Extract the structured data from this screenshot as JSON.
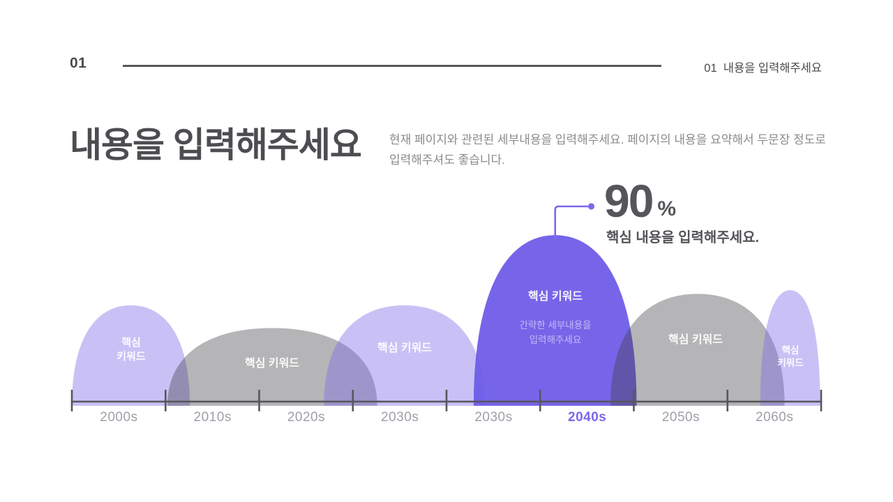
{
  "slide": {
    "page_number": "01",
    "header_right": "01  내용을 입력해주세요",
    "title": "내용을 입력해주세요",
    "description": "현재 페이지와 관련된 세부내용을 입력해주세요. 페이지의 내용을 요약해서 두문장 정도로 입력해주셔도 좋습니다."
  },
  "callout": {
    "value": "90",
    "unit": "%",
    "caption": "핵심 내용을 입력해주세요."
  },
  "colors": {
    "accent": "#7c68ea",
    "axis": "#57575c",
    "dome_lavender": "#7e6ce6",
    "dome_lavender_opacity": 0.42,
    "dome_gray": "#3c3c42",
    "dome_gray_opacity": 0.38,
    "dome_purple": "#6c59e7",
    "dome_purple_opacity": 0.93,
    "text_dark": "#4d4d51",
    "text_muted": "#8b8b90",
    "axis_label": "#9da0a8"
  },
  "chart_data": {
    "type": "area",
    "subtype": "overlapping-dome-timeline",
    "title": "내용을 입력해주세요",
    "x_tick_labels": [
      "2000s",
      "2010s",
      "2020s",
      "2030s",
      "2030s",
      "2040s",
      "2050s",
      "2060s"
    ],
    "highlighted_label": "2040s",
    "ylim": [
      0,
      100
    ],
    "grid": false,
    "highlight_value_pct": 90,
    "domes": [
      {
        "label": "핵심\n키워드",
        "height_pct": 53,
        "center": 0.63,
        "half_width": 0.63,
        "color": "lavender"
      },
      {
        "label": "핵심 키워드",
        "height_pct": 41,
        "center": 2.14,
        "half_width": 1.12,
        "color": "gray"
      },
      {
        "label": "핵심 키워드",
        "height_pct": 53,
        "center": 3.55,
        "half_width": 0.86,
        "color": "lavender"
      },
      {
        "label": "핵심 키워드",
        "sublabel": "간략한 세부내용을\n입력해주세요",
        "height_pct": 90,
        "center": 5.16,
        "half_width": 0.87,
        "color": "purple"
      },
      {
        "label": "핵심 키워드",
        "height_pct": 59,
        "center": 6.68,
        "half_width": 0.93,
        "color": "gray"
      },
      {
        "label": "핵심\n키워드",
        "height_pct": 61,
        "center": 7.67,
        "half_width": 0.32,
        "color": "lavender"
      }
    ]
  }
}
